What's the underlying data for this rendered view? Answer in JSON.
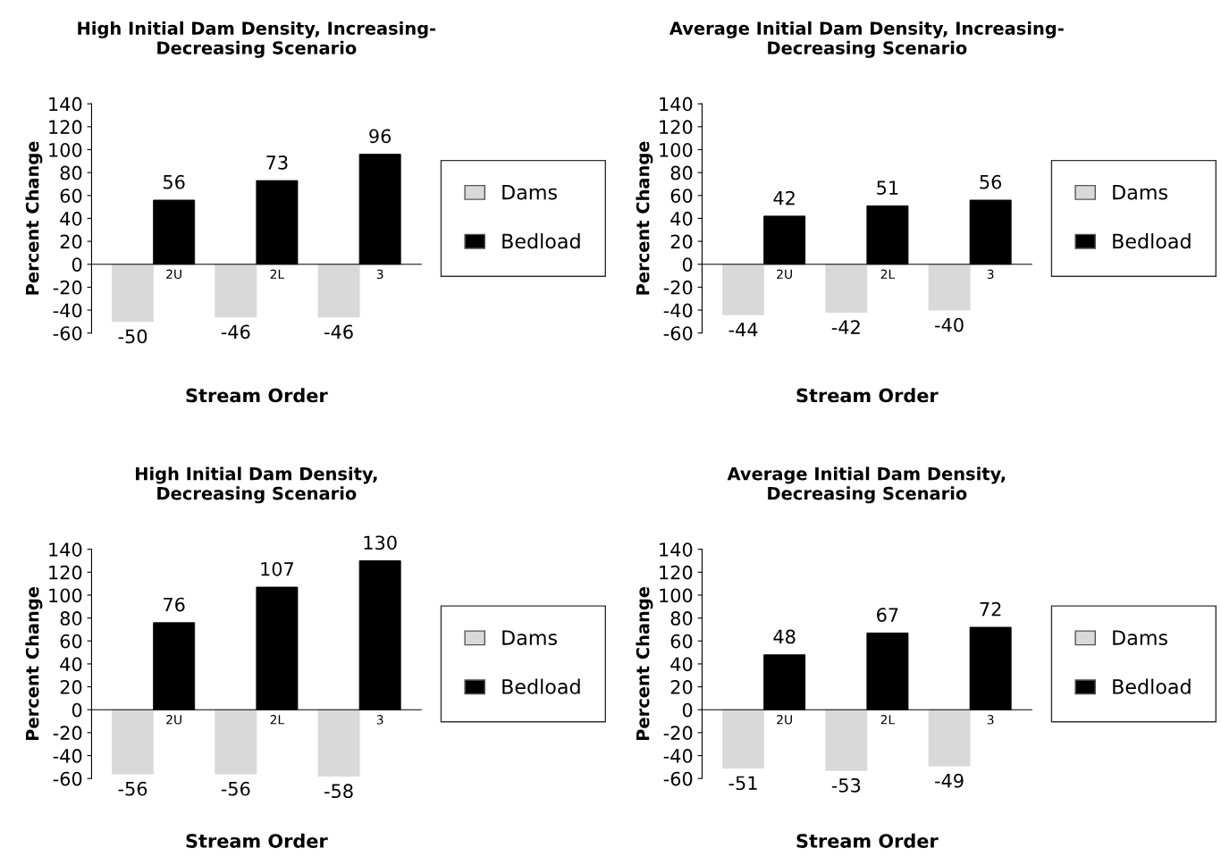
{
  "chart_data": [
    {
      "type": "bar",
      "title": "High Initial Dam Density, Increasing-\nDecreasing Scenario",
      "xlabel": "Stream Order",
      "ylabel": "Percent Change",
      "categories": [
        "2U",
        "2L",
        "3"
      ],
      "ylim": [
        -60,
        140
      ],
      "yticks": [
        -60,
        -40,
        -20,
        0,
        20,
        40,
        60,
        80,
        100,
        120,
        140
      ],
      "grid": false,
      "legend": "right",
      "data_labels": true,
      "series": [
        {
          "name": "Dams",
          "color": "#d9d9d9",
          "values": [
            -50,
            -46,
            -46
          ]
        },
        {
          "name": "Bedload",
          "color": "#000000",
          "values": [
            56,
            73,
            96
          ]
        }
      ]
    },
    {
      "type": "bar",
      "title": "Average Initial Dam Density, Increasing-\nDecreasing Scenario",
      "xlabel": "Stream Order",
      "ylabel": "Percent Change",
      "categories": [
        "2U",
        "2L",
        "3"
      ],
      "ylim": [
        -60,
        140
      ],
      "yticks": [
        -60,
        -40,
        -20,
        0,
        20,
        40,
        60,
        80,
        100,
        120,
        140
      ],
      "grid": false,
      "legend": "right",
      "data_labels": true,
      "series": [
        {
          "name": "Dams",
          "color": "#d9d9d9",
          "values": [
            -44,
            -42,
            -40
          ]
        },
        {
          "name": "Bedload",
          "color": "#000000",
          "values": [
            42,
            51,
            56
          ]
        }
      ]
    },
    {
      "type": "bar",
      "title": "High Initial Dam Density,\nDecreasing Scenario",
      "xlabel": "Stream Order",
      "ylabel": "Percent Change",
      "categories": [
        "2U",
        "2L",
        "3"
      ],
      "ylim": [
        -60,
        140
      ],
      "yticks": [
        -60,
        -40,
        -20,
        0,
        20,
        40,
        60,
        80,
        100,
        120,
        140
      ],
      "grid": false,
      "legend": "right",
      "data_labels": true,
      "series": [
        {
          "name": "Dams",
          "color": "#d9d9d9",
          "values": [
            -56,
            -56,
            -58
          ]
        },
        {
          "name": "Bedload",
          "color": "#000000",
          "values": [
            76,
            107,
            130
          ]
        }
      ]
    },
    {
      "type": "bar",
      "title": "Average Initial Dam Density,\nDecreasing Scenario",
      "xlabel": "Stream Order",
      "ylabel": "Percent Change",
      "categories": [
        "2U",
        "2L",
        "3"
      ],
      "ylim": [
        -60,
        140
      ],
      "yticks": [
        -60,
        -40,
        -20,
        0,
        20,
        40,
        60,
        80,
        100,
        120,
        140
      ],
      "grid": false,
      "legend": "right",
      "data_labels": true,
      "series": [
        {
          "name": "Dams",
          "color": "#d9d9d9",
          "values": [
            -51,
            -53,
            -49
          ]
        },
        {
          "name": "Bedload",
          "color": "#000000",
          "values": [
            48,
            67,
            72
          ]
        }
      ]
    }
  ]
}
